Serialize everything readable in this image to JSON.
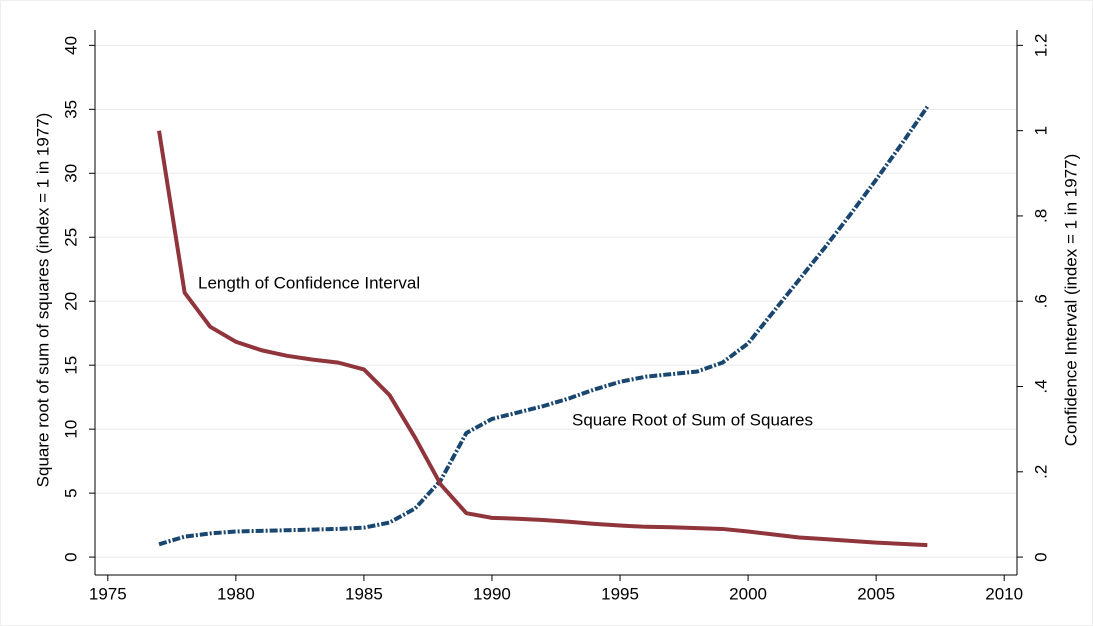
{
  "chart_data": {
    "type": "line",
    "y_label": "Square root of sum of squares (index = 1 in 1977)",
    "y2_label": "Confidence Interval (index = 1 in 1977)",
    "annotations": [
      "Length of Confidence Interval",
      "Square Root of Sum of Squares"
    ],
    "x": [
      1977,
      1978,
      1979,
      1980,
      1981,
      1982,
      1983,
      1984,
      1985,
      1986,
      1987,
      1988,
      1989,
      1990,
      1991,
      1992,
      1993,
      1994,
      1995,
      1996,
      1997,
      1998,
      1999,
      2000,
      2001,
      2002,
      2003,
      2004,
      2005,
      2006,
      2007
    ],
    "series": [
      {
        "name": "Square Root of Sum of Squares",
        "color": "#1a476f",
        "axis": "y",
        "values": [
          1.0,
          1.6,
          1.85,
          2.0,
          2.05,
          2.1,
          2.15,
          2.2,
          2.3,
          2.7,
          3.8,
          6.0,
          9.7,
          10.8,
          11.3,
          11.8,
          12.4,
          13.1,
          13.7,
          14.1,
          14.3,
          14.5,
          15.2,
          16.7,
          19.2,
          21.7,
          24.2,
          26.8,
          29.5,
          32.3,
          35.2
        ]
      },
      {
        "name": "Length of Confidence Interval",
        "color": "#90353b",
        "axis": "y2",
        "values": [
          1.0,
          0.62,
          0.54,
          0.505,
          0.485,
          0.472,
          0.463,
          0.456,
          0.44,
          0.38,
          0.28,
          0.17,
          0.103,
          0.092,
          0.09,
          0.087,
          0.083,
          0.078,
          0.074,
          0.071,
          0.07,
          0.068,
          0.066,
          0.06,
          0.053,
          0.046,
          0.042,
          0.038,
          0.034,
          0.031,
          0.028
        ]
      }
    ],
    "xlim": [
      1974.5,
      2010.5
    ],
    "xticks": [
      1975,
      1980,
      1985,
      1990,
      1995,
      2000,
      2005,
      2010
    ],
    "ylim": [
      -1.4,
      41.2
    ],
    "yticks": [
      0,
      5,
      10,
      15,
      20,
      25,
      30,
      35,
      40
    ],
    "y2lim": [
      -0.042,
      1.236
    ],
    "y2ticks": [
      0,
      {
        "value": 0.2,
        "label": ".2"
      },
      {
        "value": 0.4,
        "label": ".4"
      },
      {
        "value": 0.6,
        "label": ".6"
      },
      {
        "value": 0.8,
        "label": ".8"
      },
      1,
      1.2
    ],
    "grid": true
  }
}
